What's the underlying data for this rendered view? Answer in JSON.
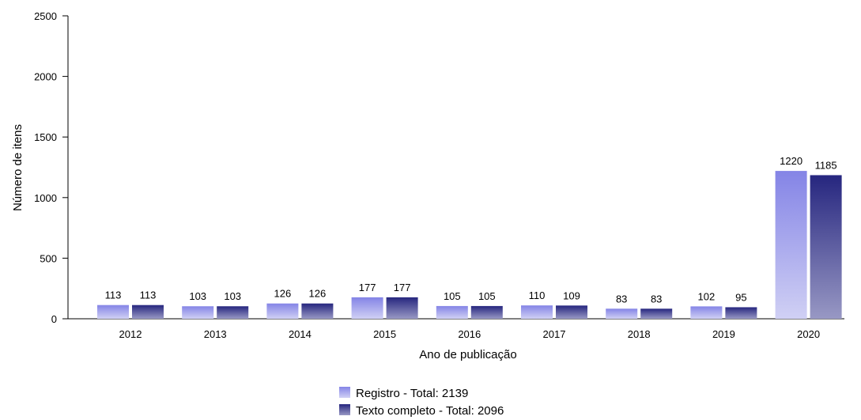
{
  "chart_data": {
    "type": "bar",
    "xlabel": "Ano de publicação",
    "ylabel": "Número de itens",
    "ylim": [
      0,
      2500
    ],
    "yticks": [
      0,
      500,
      1000,
      1500,
      2000,
      2500
    ],
    "grid": false,
    "legend_position": "bottom-center",
    "categories": [
      "2012",
      "2013",
      "2014",
      "2015",
      "2016",
      "2017",
      "2018",
      "2019",
      "2020"
    ],
    "series": [
      {
        "name": "Registro - Total: 2139",
        "values": [
          113,
          103,
          126,
          177,
          105,
          110,
          83,
          102,
          1220
        ],
        "color_top": "#8484e6",
        "color_bottom": "#d0d0f4"
      },
      {
        "name": "Texto completo - Total: 2096",
        "values": [
          113,
          103,
          126,
          177,
          105,
          109,
          83,
          95,
          1185
        ],
        "color_top": "#26267f",
        "color_bottom": "#9898c4"
      }
    ]
  }
}
